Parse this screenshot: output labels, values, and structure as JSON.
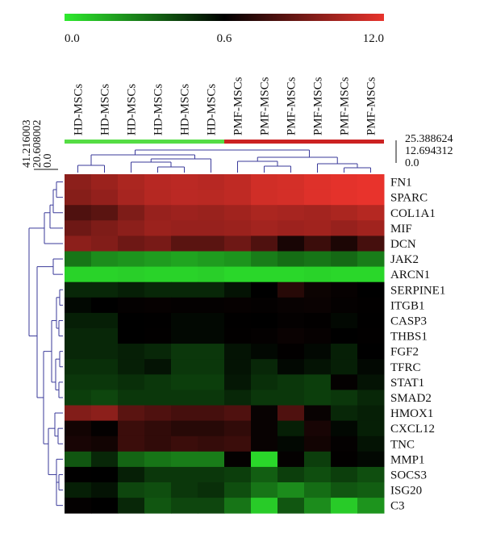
{
  "chart_data": {
    "type": "heatmap",
    "title": "",
    "colorbar": {
      "ticks": [
        "0.0",
        "0.6",
        "12.0"
      ],
      "low_color": "#2eea2e",
      "mid_color": "#000000",
      "high_color": "#e8332c"
    },
    "columns": [
      "HD-MSCs",
      "HD-MSCs",
      "HD-MSCs",
      "HD-MSCs",
      "HD-MSCs",
      "HD-MSCs",
      "PMF-MSCs",
      "PMF-MSCs",
      "PMF-MSCs",
      "PMF-MSCs",
      "PMF-MSCs",
      "PMF-MSCs"
    ],
    "groups": [
      {
        "name": "HD-MSCs",
        "color": "#55dd44",
        "count": 6
      },
      {
        "name": "PMF-MSCs",
        "color": "#cc2222",
        "count": 6
      }
    ],
    "rows": [
      "FN1",
      "SPARC",
      "COL1A1",
      "MIF",
      "DCN",
      "JAK2",
      "ARCN1",
      "SERPINE1",
      "ITGB1",
      "CASP3",
      "THBS1",
      "FGF2",
      "TFRC",
      "STAT1",
      "SMAD2",
      "HMOX1",
      "CXCL12",
      "TNC",
      "MMP1",
      "SOCS3",
      "ISG20",
      "C3"
    ],
    "values": [
      [
        7.5,
        8.2,
        9.0,
        9.6,
        9.8,
        9.6,
        10.0,
        10.8,
        11.0,
        11.5,
        11.8,
        12.0
      ],
      [
        7.2,
        7.8,
        8.8,
        9.5,
        9.8,
        9.7,
        10.0,
        10.8,
        11.0,
        11.5,
        11.8,
        12.0
      ],
      [
        4.5,
        5.0,
        6.8,
        8.0,
        8.3,
        8.1,
        8.5,
        9.0,
        8.8,
        8.6,
        9.0,
        9.5
      ],
      [
        6.0,
        6.8,
        7.5,
        8.2,
        8.0,
        8.0,
        8.2,
        8.6,
        8.3,
        8.5,
        8.0,
        8.5
      ],
      [
        7.5,
        7.0,
        6.0,
        6.5,
        5.0,
        5.0,
        6.0,
        4.5,
        1.8,
        3.5,
        2.0,
        4.0
      ],
      [
        0.3,
        0.24,
        0.22,
        0.2,
        0.18,
        0.2,
        0.22,
        0.28,
        0.32,
        0.3,
        0.33,
        0.28
      ],
      [
        0.06,
        0.06,
        0.07,
        0.06,
        0.06,
        0.07,
        0.05,
        0.05,
        0.05,
        0.06,
        0.05,
        0.05
      ],
      [
        0.5,
        0.5,
        0.52,
        0.5,
        0.5,
        0.5,
        0.55,
        0.62,
        2.5,
        1.2,
        0.9,
        0.62
      ],
      [
        0.58,
        0.6,
        0.8,
        0.9,
        0.8,
        0.8,
        0.9,
        0.8,
        1.0,
        1.1,
        0.8,
        0.7
      ],
      [
        0.52,
        0.52,
        0.62,
        0.66,
        0.58,
        0.58,
        0.66,
        0.62,
        0.8,
        0.7,
        0.58,
        0.66
      ],
      [
        0.5,
        0.5,
        0.6,
        0.7,
        0.58,
        0.58,
        0.7,
        0.8,
        1.1,
        0.9,
        0.62,
        0.7
      ],
      [
        0.5,
        0.5,
        0.52,
        0.5,
        0.46,
        0.46,
        0.55,
        0.58,
        0.7,
        0.58,
        0.52,
        0.6
      ],
      [
        0.48,
        0.48,
        0.52,
        0.55,
        0.46,
        0.46,
        0.55,
        0.5,
        0.58,
        0.55,
        0.52,
        0.58
      ],
      [
        0.46,
        0.46,
        0.48,
        0.46,
        0.44,
        0.44,
        0.54,
        0.48,
        0.46,
        0.44,
        0.8,
        0.55
      ],
      [
        0.44,
        0.42,
        0.46,
        0.46,
        0.46,
        0.46,
        0.5,
        0.46,
        0.46,
        0.44,
        0.46,
        0.5
      ],
      [
        7.0,
        7.5,
        5.0,
        4.5,
        4.0,
        4.0,
        4.5,
        1.0,
        4.5,
        1.0,
        0.5,
        0.52
      ],
      [
        1.5,
        0.8,
        3.5,
        3.0,
        2.5,
        2.5,
        3.0,
        1.0,
        0.52,
        1.8,
        0.58,
        0.52
      ],
      [
        1.8,
        1.5,
        3.5,
        3.0,
        3.5,
        3.2,
        3.5,
        1.0,
        0.58,
        1.5,
        0.8,
        0.55
      ],
      [
        0.38,
        0.5,
        0.34,
        0.3,
        0.28,
        0.28,
        0.8,
        0.05,
        0.8,
        0.44,
        0.7,
        0.58
      ],
      [
        0.66,
        0.62,
        0.52,
        0.46,
        0.46,
        0.46,
        0.44,
        0.36,
        0.44,
        0.4,
        0.44,
        0.4
      ],
      [
        0.52,
        0.55,
        0.42,
        0.4,
        0.46,
        0.48,
        0.4,
        0.3,
        0.24,
        0.32,
        0.38,
        0.36
      ],
      [
        0.8,
        0.62,
        0.5,
        0.38,
        0.42,
        0.42,
        0.3,
        0.08,
        0.38,
        0.24,
        0.08,
        0.22
      ]
    ],
    "row_scale": {
      "ticks": [
        "41.216003",
        "20.608002",
        "0.0"
      ]
    },
    "col_scale": {
      "ticks": [
        "25.388624",
        "12.694312",
        "0.0"
      ]
    }
  }
}
